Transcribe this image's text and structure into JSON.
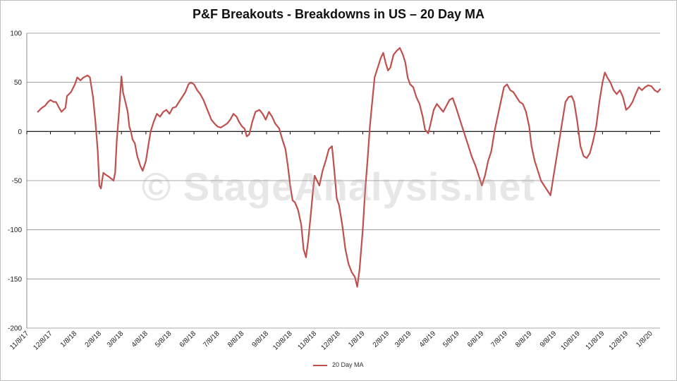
{
  "chart_data": {
    "type": "line",
    "title": "P&F Breakouts - Breakdowns in US – 20 Day MA",
    "watermark": "© StageAnalysis.net",
    "xlabel": "",
    "ylabel": "",
    "ylim": [
      -200,
      100
    ],
    "y_ticks": [
      100,
      50,
      0,
      -50,
      -100,
      -150,
      -200
    ],
    "x_tick_labels": [
      "11/8/17",
      "12/8/17",
      "1/8/18",
      "2/8/18",
      "3/8/18",
      "4/8/18",
      "5/8/18",
      "6/8/18",
      "7/8/18",
      "8/8/18",
      "9/8/18",
      "10/8/18",
      "11/8/18",
      "12/8/18",
      "1/8/19",
      "2/8/19",
      "3/8/19",
      "4/8/19",
      "5/8/19",
      "6/8/19",
      "7/8/19",
      "8/8/19",
      "9/8/19",
      "10/8/19",
      "11/8/19",
      "12/8/19",
      "1/8/20"
    ],
    "x_range": [
      "11/8/17",
      "1/20/20"
    ],
    "grid": true,
    "legend_position": "bottom",
    "series": [
      {
        "name": "20 Day MA",
        "color": "#c0504d",
        "points": [
          [
            "11/22/17",
            20
          ],
          [
            "11/27/17",
            24
          ],
          [
            "12/1/17",
            26
          ],
          [
            "12/5/17",
            30
          ],
          [
            "12/8/17",
            32
          ],
          [
            "12/12/17",
            30
          ],
          [
            "12/15/17",
            30
          ],
          [
            "12/19/17",
            24
          ],
          [
            "12/22/17",
            20
          ],
          [
            "12/27/17",
            24
          ],
          [
            "12/29/17",
            36
          ],
          [
            "1/3/18",
            40
          ],
          [
            "1/8/18",
            48
          ],
          [
            "1/11/18",
            55
          ],
          [
            "1/15/18",
            52
          ],
          [
            "1/19/18",
            55
          ],
          [
            "1/24/18",
            57
          ],
          [
            "1/27/18",
            55
          ],
          [
            "1/31/18",
            35
          ],
          [
            "2/3/18",
            10
          ],
          [
            "2/6/18",
            -20
          ],
          [
            "2/8/18",
            -55
          ],
          [
            "2/10/18",
            -58
          ],
          [
            "2/13/18",
            -42
          ],
          [
            "2/16/18",
            -44
          ],
          [
            "2/20/18",
            -46
          ],
          [
            "2/23/18",
            -48
          ],
          [
            "2/26/18",
            -50
          ],
          [
            "2/28/18",
            -42
          ],
          [
            "3/2/18",
            -10
          ],
          [
            "3/5/18",
            20
          ],
          [
            "3/8/18",
            56
          ],
          [
            "3/10/18",
            40
          ],
          [
            "3/13/18",
            30
          ],
          [
            "3/16/18",
            20
          ],
          [
            "3/18/18",
            5
          ],
          [
            "3/20/18",
            0
          ],
          [
            "3/22/18",
            -8
          ],
          [
            "3/25/18",
            -12
          ],
          [
            "3/28/18",
            -25
          ],
          [
            "4/1/18",
            -35
          ],
          [
            "4/4/18",
            -40
          ],
          [
            "4/8/18",
            -30
          ],
          [
            "4/11/18",
            -15
          ],
          [
            "4/14/18",
            0
          ],
          [
            "4/18/18",
            10
          ],
          [
            "4/22/18",
            18
          ],
          [
            "4/26/18",
            15
          ],
          [
            "4/30/18",
            20
          ],
          [
            "5/4/18",
            22
          ],
          [
            "5/8/18",
            18
          ],
          [
            "5/12/18",
            24
          ],
          [
            "5/16/18",
            25
          ],
          [
            "5/20/18",
            30
          ],
          [
            "5/24/18",
            35
          ],
          [
            "5/28/18",
            40
          ],
          [
            "6/1/18",
            48
          ],
          [
            "6/4/18",
            50
          ],
          [
            "6/8/18",
            48
          ],
          [
            "6/12/18",
            42
          ],
          [
            "6/16/18",
            38
          ],
          [
            "6/20/18",
            32
          ],
          [
            "6/25/18",
            22
          ],
          [
            "6/30/18",
            12
          ],
          [
            "7/4/18",
            8
          ],
          [
            "7/8/18",
            5
          ],
          [
            "7/12/18",
            4
          ],
          [
            "7/16/18",
            6
          ],
          [
            "7/20/18",
            8
          ],
          [
            "7/24/18",
            12
          ],
          [
            "7/28/18",
            18
          ],
          [
            "8/1/18",
            15
          ],
          [
            "8/4/18",
            10
          ],
          [
            "8/8/18",
            5
          ],
          [
            "8/11/18",
            3
          ],
          [
            "8/14/18",
            -5
          ],
          [
            "8/17/18",
            -3
          ],
          [
            "8/21/18",
            10
          ],
          [
            "8/25/18",
            20
          ],
          [
            "8/30/18",
            22
          ],
          [
            "9/3/18",
            18
          ],
          [
            "9/7/18",
            12
          ],
          [
            "9/11/18",
            20
          ],
          [
            "9/15/18",
            15
          ],
          [
            "9/19/18",
            8
          ],
          [
            "9/24/18",
            3
          ],
          [
            "9/28/18",
            -8
          ],
          [
            "10/2/18",
            -18
          ],
          [
            "10/5/18",
            -35
          ],
          [
            "10/8/18",
            -55
          ],
          [
            "10/11/18",
            -70
          ],
          [
            "10/14/18",
            -72
          ],
          [
            "10/18/18",
            -80
          ],
          [
            "10/22/18",
            -95
          ],
          [
            "10/25/18",
            -120
          ],
          [
            "10/28/18",
            -128
          ],
          [
            "10/31/18",
            -110
          ],
          [
            "11/3/18",
            -85
          ],
          [
            "11/6/18",
            -60
          ],
          [
            "11/8/18",
            -45
          ],
          [
            "11/11/18",
            -50
          ],
          [
            "11/14/18",
            -55
          ],
          [
            "11/18/18",
            -40
          ],
          [
            "11/22/18",
            -30
          ],
          [
            "11/26/18",
            -18
          ],
          [
            "11/30/18",
            -15
          ],
          [
            "12/3/18",
            -40
          ],
          [
            "12/6/18",
            -68
          ],
          [
            "12/9/18",
            -75
          ],
          [
            "12/13/18",
            -95
          ],
          [
            "12/17/18",
            -120
          ],
          [
            "12/21/18",
            -135
          ],
          [
            "12/25/18",
            -143
          ],
          [
            "12/29/18",
            -148
          ],
          [
            "1/1/19",
            -158
          ],
          [
            "1/4/19",
            -140
          ],
          [
            "1/8/19",
            -100
          ],
          [
            "1/11/19",
            -60
          ],
          [
            "1/14/19",
            -30
          ],
          [
            "1/17/19",
            5
          ],
          [
            "1/20/19",
            30
          ],
          [
            "1/23/19",
            55
          ],
          [
            "1/27/19",
            65
          ],
          [
            "1/31/19",
            75
          ],
          [
            "2/3/19",
            80
          ],
          [
            "2/6/19",
            70
          ],
          [
            "2/9/19",
            62
          ],
          [
            "2/12/19",
            65
          ],
          [
            "2/16/19",
            78
          ],
          [
            "2/20/19",
            82
          ],
          [
            "2/24/19",
            85
          ],
          [
            "2/28/19",
            78
          ],
          [
            "3/3/19",
            70
          ],
          [
            "3/6/19",
            55
          ],
          [
            "3/9/19",
            48
          ],
          [
            "3/13/19",
            45
          ],
          [
            "3/17/19",
            35
          ],
          [
            "3/21/19",
            28
          ],
          [
            "3/25/19",
            15
          ],
          [
            "3/28/19",
            2
          ],
          [
            "4/1/19",
            -2
          ],
          [
            "4/4/19",
            8
          ],
          [
            "4/8/19",
            22
          ],
          [
            "4/12/19",
            28
          ],
          [
            "4/16/19",
            24
          ],
          [
            "4/20/19",
            20
          ],
          [
            "4/24/19",
            26
          ],
          [
            "4/28/19",
            32
          ],
          [
            "5/2/19",
            34
          ],
          [
            "5/6/19",
            25
          ],
          [
            "5/10/19",
            15
          ],
          [
            "5/14/19",
            5
          ],
          [
            "5/18/19",
            -5
          ],
          [
            "5/22/19",
            -15
          ],
          [
            "5/26/19",
            -25
          ],
          [
            "5/31/19",
            -35
          ],
          [
            "6/4/19",
            -45
          ],
          [
            "6/8/19",
            -55
          ],
          [
            "6/12/19",
            -45
          ],
          [
            "6/16/19",
            -30
          ],
          [
            "6/20/19",
            -20
          ],
          [
            "6/24/19",
            0
          ],
          [
            "6/28/19",
            15
          ],
          [
            "7/2/19",
            30
          ],
          [
            "7/6/19",
            45
          ],
          [
            "7/10/19",
            48
          ],
          [
            "7/14/19",
            42
          ],
          [
            "7/18/19",
            40
          ],
          [
            "7/22/19",
            35
          ],
          [
            "7/26/19",
            30
          ],
          [
            "7/30/19",
            28
          ],
          [
            "8/3/19",
            20
          ],
          [
            "8/7/19",
            5
          ],
          [
            "8/10/19",
            -15
          ],
          [
            "8/14/19",
            -30
          ],
          [
            "8/18/19",
            -40
          ],
          [
            "8/22/19",
            -50
          ],
          [
            "8/26/19",
            -55
          ],
          [
            "8/30/19",
            -60
          ],
          [
            "9/3/19",
            -65
          ],
          [
            "9/6/19",
            -50
          ],
          [
            "9/10/19",
            -30
          ],
          [
            "9/14/19",
            -10
          ],
          [
            "9/18/19",
            10
          ],
          [
            "9/22/19",
            30
          ],
          [
            "9/26/19",
            35
          ],
          [
            "9/30/19",
            36
          ],
          [
            "10/3/19",
            30
          ],
          [
            "10/7/19",
            10
          ],
          [
            "10/11/19",
            -15
          ],
          [
            "10/15/19",
            -25
          ],
          [
            "10/19/19",
            -27
          ],
          [
            "10/23/19",
            -22
          ],
          [
            "10/27/19",
            -10
          ],
          [
            "10/31/19",
            5
          ],
          [
            "11/4/19",
            30
          ],
          [
            "11/8/19",
            50
          ],
          [
            "11/11/19",
            60
          ],
          [
            "11/14/19",
            55
          ],
          [
            "11/18/19",
            50
          ],
          [
            "11/22/19",
            42
          ],
          [
            "11/26/19",
            38
          ],
          [
            "11/30/19",
            42
          ],
          [
            "12/4/19",
            35
          ],
          [
            "12/8/19",
            22
          ],
          [
            "12/12/19",
            25
          ],
          [
            "12/16/19",
            30
          ],
          [
            "12/20/19",
            38
          ],
          [
            "12/24/19",
            45
          ],
          [
            "12/28/19",
            42
          ],
          [
            "1/1/20",
            45
          ],
          [
            "1/5/20",
            47
          ],
          [
            "1/9/20",
            46
          ],
          [
            "1/13/20",
            42
          ],
          [
            "1/17/20",
            40
          ],
          [
            "1/20/20",
            43
          ]
        ]
      }
    ]
  }
}
